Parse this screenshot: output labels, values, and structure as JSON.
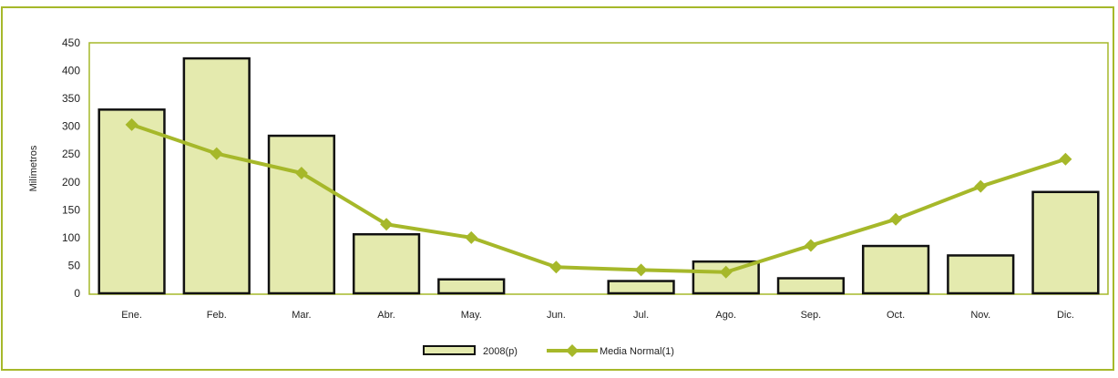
{
  "colors": {
    "frame": "#a6b82a",
    "plot_border": "#a6b82a",
    "bar_fill": "#e4eaae",
    "bar_stroke": "#111111",
    "line": "#a6b82a"
  },
  "chart_data": {
    "type": "bar",
    "title": "",
    "xlabel": "",
    "ylabel": "Milímetros",
    "ylim": [
      0,
      450
    ],
    "yticks": [
      0,
      50,
      100,
      150,
      200,
      250,
      300,
      350,
      400,
      450
    ],
    "grid": false,
    "legend_position": "bottom",
    "categories": [
      "Ene.",
      "Feb.",
      "Mar.",
      "Abr.",
      "May.",
      "Jun.",
      "Jul.",
      "Ago.",
      "Sep.",
      "Oct.",
      "Nov.",
      "Dic."
    ],
    "series": [
      {
        "name": "2008(p)",
        "type": "bar",
        "values": [
          330,
          422,
          283,
          106,
          25,
          0,
          22,
          57,
          27,
          85,
          68,
          182
        ]
      },
      {
        "name": "Media Normal(1)",
        "type": "line",
        "values": [
          303,
          251,
          216,
          124,
          100,
          47,
          42,
          38,
          86,
          133,
          192,
          241
        ]
      }
    ]
  }
}
